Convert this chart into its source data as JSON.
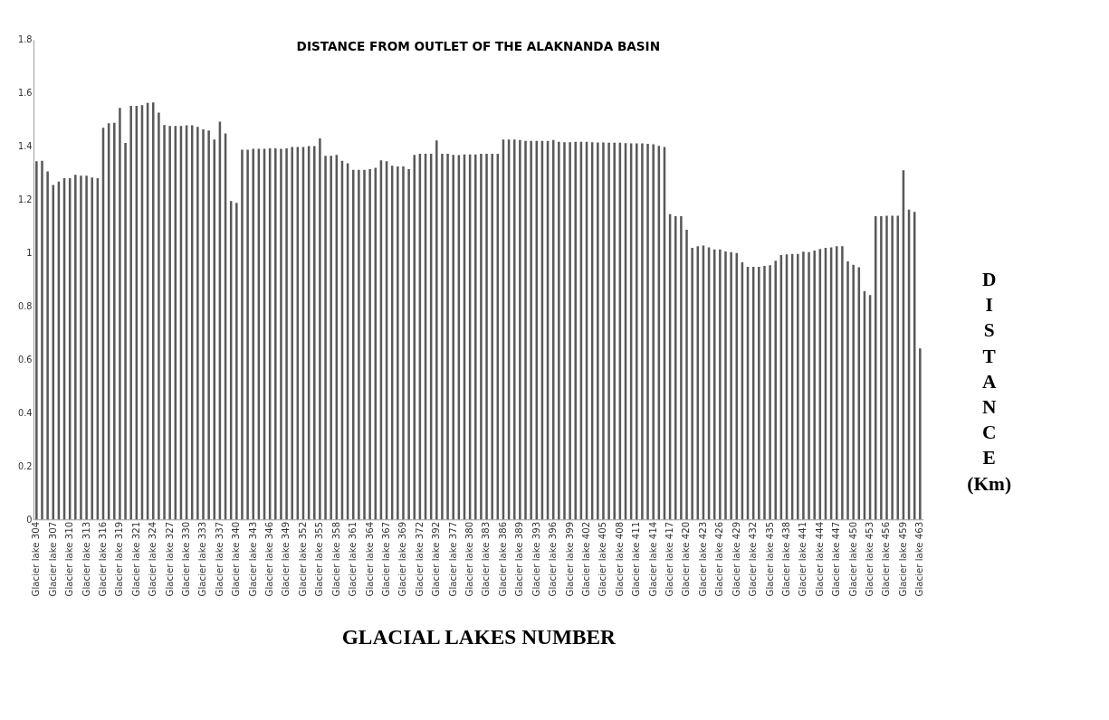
{
  "chart_data": {
    "type": "bar",
    "title": "DISTANCE FROM OUTLET OF THE ALAKNANDA BASIN",
    "xlabel": "GLACIAL LAKES NUMBER",
    "ylabel": "DISTANCE (Km)",
    "categories": [
      "Glacier lake 304",
      null,
      null,
      "Glacier lake 307",
      null,
      null,
      "Glacier lake 310",
      null,
      null,
      "Glacier lake 313",
      null,
      null,
      "Glacier lake 316",
      null,
      null,
      "Glacier lake 319",
      null,
      null,
      "Glacier lake 321",
      null,
      null,
      "Glacier lake 324",
      null,
      null,
      "Glacier lake 327",
      null,
      null,
      "Glacier lake 330",
      null,
      null,
      "Glacier lake 333",
      null,
      null,
      "Glacier lake 337",
      null,
      null,
      "Glacier lake 340",
      null,
      null,
      "Glacier lake 343",
      null,
      null,
      "Glacier lake 346",
      null,
      null,
      "Glacier lake 349",
      null,
      null,
      "Glacier lake 352",
      null,
      null,
      "Glacier lake 355",
      null,
      null,
      "Glacier lake 358",
      null,
      null,
      "Glacier lake 361",
      null,
      null,
      "Glacier lake 364",
      null,
      null,
      "Glacier lake 367",
      null,
      null,
      "Glacier lake 369",
      null,
      null,
      "Glacier lake 372",
      null,
      null,
      "Glacier lake 392",
      null,
      null,
      "Glacier lake 377",
      null,
      null,
      "Glacier lake 380",
      null,
      null,
      "Glacier lake 383",
      null,
      null,
      "Glacier lake 386",
      null,
      null,
      "Glacier lake 389",
      null,
      null,
      "Glacier lake 393",
      null,
      null,
      "Glacier lake 396",
      null,
      null,
      "Glacier lake 399",
      null,
      null,
      "Glacier lake 402",
      null,
      null,
      "Glacier lake 405",
      null,
      null,
      "Glacier lake 408",
      null,
      null,
      "Glacier lake 411",
      null,
      null,
      "Glacier lake 414",
      null,
      null,
      "Glacier lake 417",
      null,
      null,
      "Glacier lake 420",
      null,
      null,
      "Glacier lake 423",
      null,
      null,
      "Glacier lake 426",
      null,
      null,
      "Glacier lake 429",
      null,
      null,
      "Glacier lake 432",
      null,
      null,
      "Glacier lake 435",
      null,
      null,
      "Glacier lake 438",
      null,
      null,
      "Glacier lake 441",
      null,
      null,
      "Glacier lake 444",
      null,
      null,
      "Glacier lake 447",
      null,
      null,
      "Glacier lake 450",
      null,
      null,
      "Glacier lake 453",
      null,
      null,
      "Glacier lake 456",
      null,
      null,
      "Glacier lake 459",
      null,
      null,
      "Glacier lake 463"
    ],
    "values": [
      1.344,
      1.346,
      1.306,
      1.255,
      1.268,
      1.281,
      1.281,
      1.293,
      1.29,
      1.29,
      1.283,
      1.281,
      1.47,
      1.487,
      1.489,
      1.545,
      1.413,
      1.552,
      1.552,
      1.555,
      1.563,
      1.565,
      1.527,
      1.48,
      1.477,
      1.477,
      1.477,
      1.479,
      1.479,
      1.473,
      1.464,
      1.46,
      1.426,
      1.493,
      1.449,
      1.195,
      1.188,
      1.388,
      1.388,
      1.391,
      1.391,
      1.391,
      1.393,
      1.393,
      1.391,
      1.393,
      1.398,
      1.398,
      1.398,
      1.401,
      1.401,
      1.43,
      1.365,
      1.365,
      1.368,
      1.346,
      1.337,
      1.312,
      1.312,
      1.312,
      1.315,
      1.32,
      1.348,
      1.344,
      1.327,
      1.325,
      1.325,
      1.315,
      1.368,
      1.372,
      1.372,
      1.372,
      1.422,
      1.372,
      1.372,
      1.368,
      1.367,
      1.37,
      1.37,
      1.37,
      1.372,
      1.372,
      1.372,
      1.372,
      1.426,
      1.426,
      1.426,
      1.424,
      1.421,
      1.421,
      1.421,
      1.421,
      1.421,
      1.424,
      1.417,
      1.416,
      1.416,
      1.417,
      1.417,
      1.417,
      1.416,
      1.415,
      1.415,
      1.414,
      1.414,
      1.414,
      1.412,
      1.411,
      1.411,
      1.411,
      1.41,
      1.408,
      1.402,
      1.398,
      1.146,
      1.138,
      1.138,
      1.087,
      1.019,
      1.025,
      1.028,
      1.021,
      1.013,
      1.013,
      1.006,
      1.003,
      1.0,
      0.965,
      0.948,
      0.948,
      0.948,
      0.951,
      0.954,
      0.971,
      0.992,
      0.995,
      0.996,
      0.996,
      1.005,
      1.003,
      1.009,
      1.015,
      1.019,
      1.021,
      1.025,
      1.025,
      0.968,
      0.956,
      0.946,
      0.857,
      0.842,
      1.138,
      1.138,
      1.14,
      1.14,
      1.14,
      1.31,
      1.163,
      1.154,
      0.642
    ],
    "color": "#595959",
    "ylim": [
      0,
      1.8
    ],
    "yticks": [
      0,
      0.2,
      0.4,
      0.6,
      0.8,
      1,
      1.2,
      1.4,
      1.6,
      1.8
    ]
  }
}
